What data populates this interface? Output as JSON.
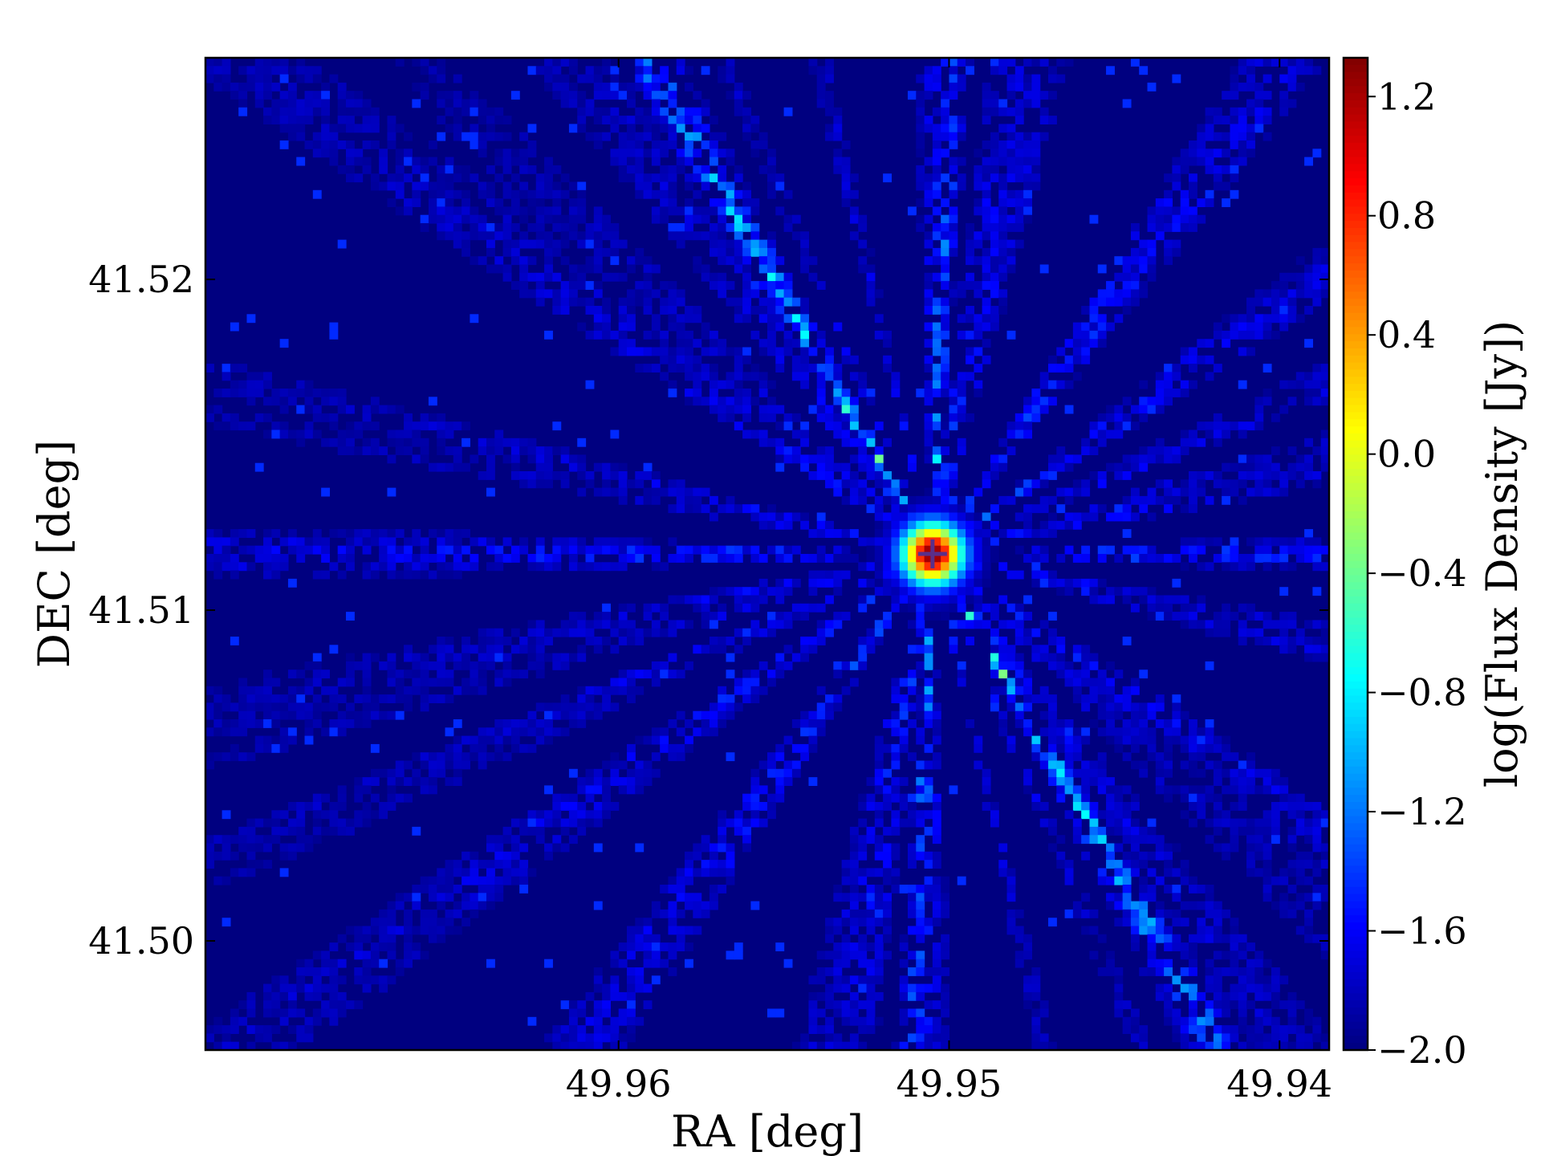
{
  "chart_data": {
    "type": "heatmap",
    "title": "",
    "xlabel": "RA [deg]",
    "ylabel": "DEC [deg]",
    "xlim": [
      49.9725,
      49.9385
    ],
    "ylim": [
      41.4967,
      41.5267
    ],
    "x_inverted": true,
    "xticks": [
      {
        "value": 49.96,
        "label": "49.96"
      },
      {
        "value": 49.95,
        "label": "49.95"
      },
      {
        "value": 49.94,
        "label": "49.94"
      }
    ],
    "yticks": [
      {
        "value": 41.52,
        "label": "41.52"
      },
      {
        "value": 41.51,
        "label": "41.51"
      },
      {
        "value": 41.5,
        "label": "41.50"
      }
    ],
    "colorbar": {
      "label": "log(Flux Density [Jy])",
      "colormap": "jet",
      "vmin": -2.0,
      "vmax": 1.33,
      "ticks": [
        {
          "value": 1.2,
          "label": "1.2"
        },
        {
          "value": 0.8,
          "label": "0.8"
        },
        {
          "value": 0.4,
          "label": "0.4"
        },
        {
          "value": 0.0,
          "label": "0.0"
        },
        {
          "value": -0.4,
          "label": "−0.4"
        },
        {
          "value": -0.8,
          "label": "−0.8"
        },
        {
          "value": -1.2,
          "label": "−1.2"
        },
        {
          "value": -1.6,
          "label": "−1.6"
        },
        {
          "value": -2.0,
          "label": "−2.0"
        }
      ]
    },
    "source": {
      "ra": 49.9505,
      "dec": 41.5117,
      "peak": 1.33,
      "marker": "plus"
    },
    "background_level": -2.0,
    "grid": false,
    "colors": {
      "low": "#00008f",
      "high": "#800000",
      "frame": "#000000"
    }
  }
}
